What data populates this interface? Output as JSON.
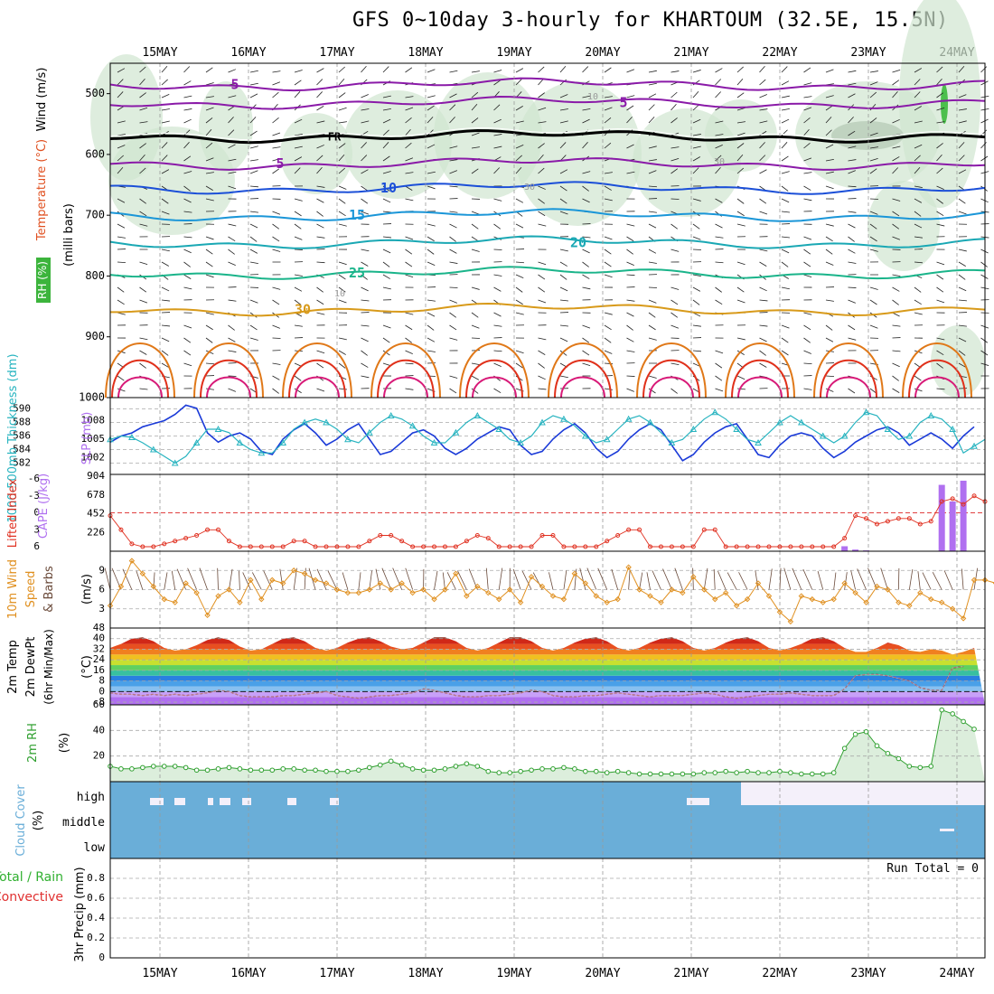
{
  "title": "GFS 0~10day 3-hourly for KHARTOUM (32.5E, 15.5N)",
  "colors": {
    "temp_cold": "#8a1aa8",
    "temp_10": "#1b4fd8",
    "temp_15": "#1a96d8",
    "temp_20": "#1aa8b4",
    "temp_25": "#1ab48a",
    "temp_30": "#d89a1a",
    "temp_35": "#e07818",
    "temp_40": "#e0301a",
    "temp_45": "#d81a78",
    "rh": "#d0e6d0",
    "slp": "#1a3ad8",
    "thickness": "#28b4c0",
    "cape": "#b070f0",
    "lifted": "#e03020",
    "wind": "#e09020",
    "cloud": "#6aaed8",
    "rh2m": "#30a030"
  },
  "chart_data": [
    {
      "panel": "cross-section",
      "type": "contour",
      "dates": [
        "15MAY",
        "16MAY",
        "17MAY",
        "18MAY",
        "19MAY",
        "20MAY",
        "21MAY",
        "22MAY",
        "23MAY",
        "24MAY"
      ],
      "ylabel_parts": [
        "Wind (m/s)",
        "Temperature (°C)",
        "RH (%)",
        "(milli bars)"
      ],
      "y_ticks": [
        500,
        600,
        700,
        800,
        900,
        1000
      ],
      "ylim": [
        1000,
        450
      ],
      "isotherms": [
        {
          "label": "5",
          "level": 485
        },
        {
          "label": "5",
          "level": 515
        },
        {
          "label": "FR",
          "level": 570
        },
        {
          "label": "5",
          "level": 615
        },
        {
          "label": "10",
          "level": 655
        },
        {
          "label": "15",
          "level": 700
        },
        {
          "label": "20",
          "level": 745
        },
        {
          "label": "25",
          "level": 795
        },
        {
          "label": "30",
          "level": 855
        }
      ],
      "rh_labels": [
        "10",
        "30"
      ]
    },
    {
      "panel": "slp-thickness",
      "type": "line",
      "ylabel_left": "1000-500mb Thickness (dm)",
      "ylabel_right": "SLP (mb)",
      "left_ticks": [
        582,
        584,
        586,
        588,
        590
      ],
      "right_ticks": [
        1002,
        1005,
        1008
      ],
      "slp": [
        1004.5,
        1005.5,
        1006.0,
        1007.0,
        1007.5,
        1008.0,
        1009.0,
        1010.5,
        1010.0,
        1006.0,
        1004.5,
        1005.5,
        1006.0,
        1005.0,
        1003.0,
        1002.5,
        1005.0,
        1006.5,
        1007.5,
        1006.0,
        1004.0,
        1005.0,
        1006.5,
        1007.5,
        1005.0,
        1002.5,
        1003.0,
        1004.5,
        1006.0,
        1006.5,
        1005.5,
        1003.5,
        1002.5,
        1003.5,
        1005.0,
        1006.0,
        1007.0,
        1006.5,
        1004.0,
        1002.5,
        1003.0,
        1005.0,
        1006.5,
        1007.5,
        1006.0,
        1003.5,
        1002.0,
        1003.0,
        1005.0,
        1006.5,
        1007.5,
        1006.5,
        1004.0,
        1001.5,
        1002.5,
        1004.5,
        1006.0,
        1007.0,
        1007.5,
        1005.0,
        1002.5,
        1002.0,
        1004.0,
        1005.5,
        1006.0,
        1005.5,
        1003.5,
        1002.0,
        1003.0,
        1004.5,
        1005.5,
        1006.5,
        1007.0,
        1006.0,
        1004.0,
        1005.0,
        1006.0,
        1005.0,
        1003.5,
        1005.5,
        1007.0
      ],
      "thickness": [
        585.5,
        586.0,
        585.8,
        585.0,
        584.0,
        583.0,
        582.0,
        583.0,
        585.0,
        587.0,
        587.0,
        586.5,
        585.0,
        584.0,
        583.5,
        583.5,
        585.0,
        587.0,
        588.0,
        588.5,
        588.0,
        587.0,
        585.5,
        585.0,
        586.5,
        588.0,
        589.0,
        588.5,
        587.5,
        586.0,
        585.0,
        585.0,
        586.5,
        588.0,
        589.0,
        588.0,
        587.0,
        585.5,
        585.0,
        586.0,
        588.0,
        589.0,
        588.5,
        587.5,
        586.0,
        585.0,
        585.5,
        587.0,
        588.5,
        589.0,
        588.0,
        586.5,
        585.0,
        585.5,
        587.0,
        588.5,
        589.5,
        588.5,
        587.0,
        585.5,
        585.0,
        586.5,
        588.0,
        589.0,
        588.0,
        587.0,
        586.0,
        585.0,
        586.0,
        588.0,
        589.5,
        589.0,
        587.0,
        585.5,
        586.0,
        588.0,
        589.0,
        588.5,
        587.0,
        583.5,
        584.5,
        585.5
      ]
    },
    {
      "panel": "cape-lifted",
      "type": "bar+line",
      "ylabel_left": "Lifted Index",
      "ylabel_right": "CAPE (J/kg)",
      "left_ticks": [
        -6,
        -3,
        0,
        3,
        6
      ],
      "right_ticks": [
        226,
        452,
        678,
        904
      ],
      "cape_bars": [
        {
          "index": 68,
          "value": 60
        },
        {
          "index": 69,
          "value": 20
        },
        {
          "index": 70,
          "value": 10
        },
        {
          "index": 77,
          "value": 800
        },
        {
          "index": 78,
          "value": 600
        },
        {
          "index": 79,
          "value": 850
        }
      ],
      "lifted_index": [
        0.5,
        3.0,
        5.5,
        6.0,
        6.0,
        5.5,
        5.0,
        4.5,
        4.0,
        3.0,
        3.0,
        5.0,
        6.0,
        6.0,
        6.0,
        6.0,
        6.0,
        5.0,
        5.0,
        6.0,
        6.0,
        6.0,
        6.0,
        6.0,
        5.0,
        4.0,
        4.0,
        5.0,
        6.0,
        6.0,
        6.0,
        6.0,
        6.0,
        5.0,
        4.0,
        4.5,
        6.0,
        6.0,
        6.0,
        6.0,
        4.0,
        4.0,
        6.0,
        6.0,
        6.0,
        6.0,
        5.0,
        4.0,
        3.0,
        3.0,
        6.0,
        6.0,
        6.0,
        6.0,
        6.0,
        3.0,
        3.0,
        6.0,
        6.0,
        6.0,
        6.0,
        6.0,
        6.0,
        6.0,
        6.0,
        6.0,
        6.0,
        6.0,
        4.5,
        0.5,
        1.0,
        2.0,
        1.5,
        1.0,
        1.0,
        2.0,
        1.5,
        -2.0,
        -2.5,
        -1.5,
        -3.0,
        -2.0
      ]
    },
    {
      "panel": "10m-wind",
      "type": "line",
      "ylabel": "10m Wind Speed & Barbs (m/s)",
      "ylim": [
        0,
        12
      ],
      "ticks": [
        3,
        6,
        9
      ],
      "values": [
        3.5,
        6.5,
        10.5,
        8.5,
        6.5,
        4.5,
        4.0,
        7.0,
        5.5,
        2.0,
        5.0,
        6.0,
        4.0,
        7.5,
        4.5,
        7.5,
        7.0,
        9.0,
        8.5,
        7.5,
        7.0,
        6.0,
        5.5,
        5.5,
        6.0,
        7.0,
        6.0,
        7.0,
        5.5,
        6.0,
        4.5,
        6.0,
        8.5,
        5.0,
        6.5,
        5.5,
        4.5,
        6.0,
        4.0,
        8.0,
        6.5,
        5.0,
        4.5,
        8.5,
        7.0,
        5.0,
        4.0,
        4.5,
        9.5,
        6.0,
        5.0,
        4.0,
        6.0,
        5.5,
        8.0,
        6.0,
        4.5,
        5.5,
        3.5,
        4.5,
        7.0,
        5.0,
        2.5,
        1.0,
        5.0,
        4.5,
        4.0,
        4.5,
        7.0,
        5.5,
        4.0,
        6.5,
        6.0,
        4.0,
        3.5,
        5.5,
        4.5,
        4.0,
        3.0,
        1.5,
        7.5,
        7.5,
        7.0
      ]
    },
    {
      "panel": "2m-temp",
      "type": "area",
      "ylabel_parts": [
        "2m Temp",
        "2m DewPt",
        "(6hr Min/Max)",
        "(°C)"
      ],
      "ticks": [
        -8,
        0,
        8,
        16,
        24,
        32,
        40,
        48
      ],
      "ylim": [
        -10,
        48
      ],
      "temp": [
        33,
        36,
        40,
        41,
        38,
        33,
        31,
        32,
        35,
        39,
        41,
        39,
        34,
        31,
        32,
        36,
        40,
        41,
        38,
        33,
        31,
        33,
        37,
        40,
        41,
        38,
        34,
        32,
        33,
        37,
        41,
        41,
        38,
        33,
        31,
        33,
        37,
        41,
        41,
        38,
        33,
        31,
        33,
        37,
        40,
        41,
        38,
        33,
        31,
        33,
        37,
        40,
        41,
        38,
        33,
        31,
        33,
        37,
        40,
        41,
        38,
        33,
        31,
        33,
        36,
        40,
        41,
        38,
        33,
        30,
        30,
        33,
        37,
        35,
        31,
        30,
        32,
        31,
        28,
        30,
        33
      ],
      "dewpoint": [
        -1,
        -2,
        -2,
        -3,
        -2,
        -3,
        -2,
        -3,
        -2,
        -1,
        1,
        0,
        -3,
        -4,
        -4,
        -4,
        -3,
        -3,
        -2,
        -1,
        0,
        -3,
        -4,
        -5,
        -4,
        -3,
        -3,
        -2,
        -1,
        2,
        1,
        -1,
        -3,
        -4,
        -4,
        -3,
        -3,
        -2,
        -1,
        1,
        0,
        -3,
        -4,
        -4,
        -3,
        -3,
        -2,
        -1,
        -2,
        -3,
        -4,
        -3,
        -3,
        -3,
        -2,
        -1,
        -2,
        -4,
        -5,
        -4,
        -3,
        -2,
        -2,
        -1,
        -2,
        -3,
        -3,
        -3,
        2,
        12,
        13,
        13,
        12,
        10,
        8,
        3,
        1,
        1,
        18,
        19
      ]
    },
    {
      "panel": "2m-rh",
      "type": "area",
      "ylabel": "2m RH (%)",
      "ticks": [
        20,
        40,
        60
      ],
      "ylim": [
        0,
        60
      ],
      "values": [
        12,
        10,
        10,
        11,
        12,
        12,
        12,
        11,
        9,
        9,
        10,
        11,
        10,
        9,
        9,
        9,
        10,
        10,
        9,
        9,
        8,
        8,
        8,
        9,
        11,
        13,
        16,
        13,
        10,
        9,
        9,
        10,
        12,
        14,
        12,
        8,
        7,
        7,
        8,
        9,
        10,
        10,
        11,
        10,
        8,
        8,
        7,
        8,
        7,
        6,
        6,
        6,
        6,
        6,
        6,
        7,
        7,
        8,
        7,
        8,
        7,
        7,
        8,
        7,
        6,
        6,
        6,
        7,
        26,
        37,
        39,
        28,
        22,
        18,
        12,
        11,
        12,
        56,
        53,
        47,
        41
      ]
    },
    {
      "panel": "cloud-cover",
      "type": "bar",
      "ylabel": "Cloud Cover (%)",
      "categories": [
        "high",
        "middle",
        "low"
      ]
    },
    {
      "panel": "precip",
      "type": "bar",
      "ylabel_parts": [
        "Total / Rain",
        "Convective",
        "3hr Precip (mm)"
      ],
      "ticks": [
        0,
        0.2,
        0.4,
        0.6,
        0.8
      ],
      "ylim": [
        0,
        1.0
      ],
      "run_total": "Run Total = 0"
    }
  ]
}
